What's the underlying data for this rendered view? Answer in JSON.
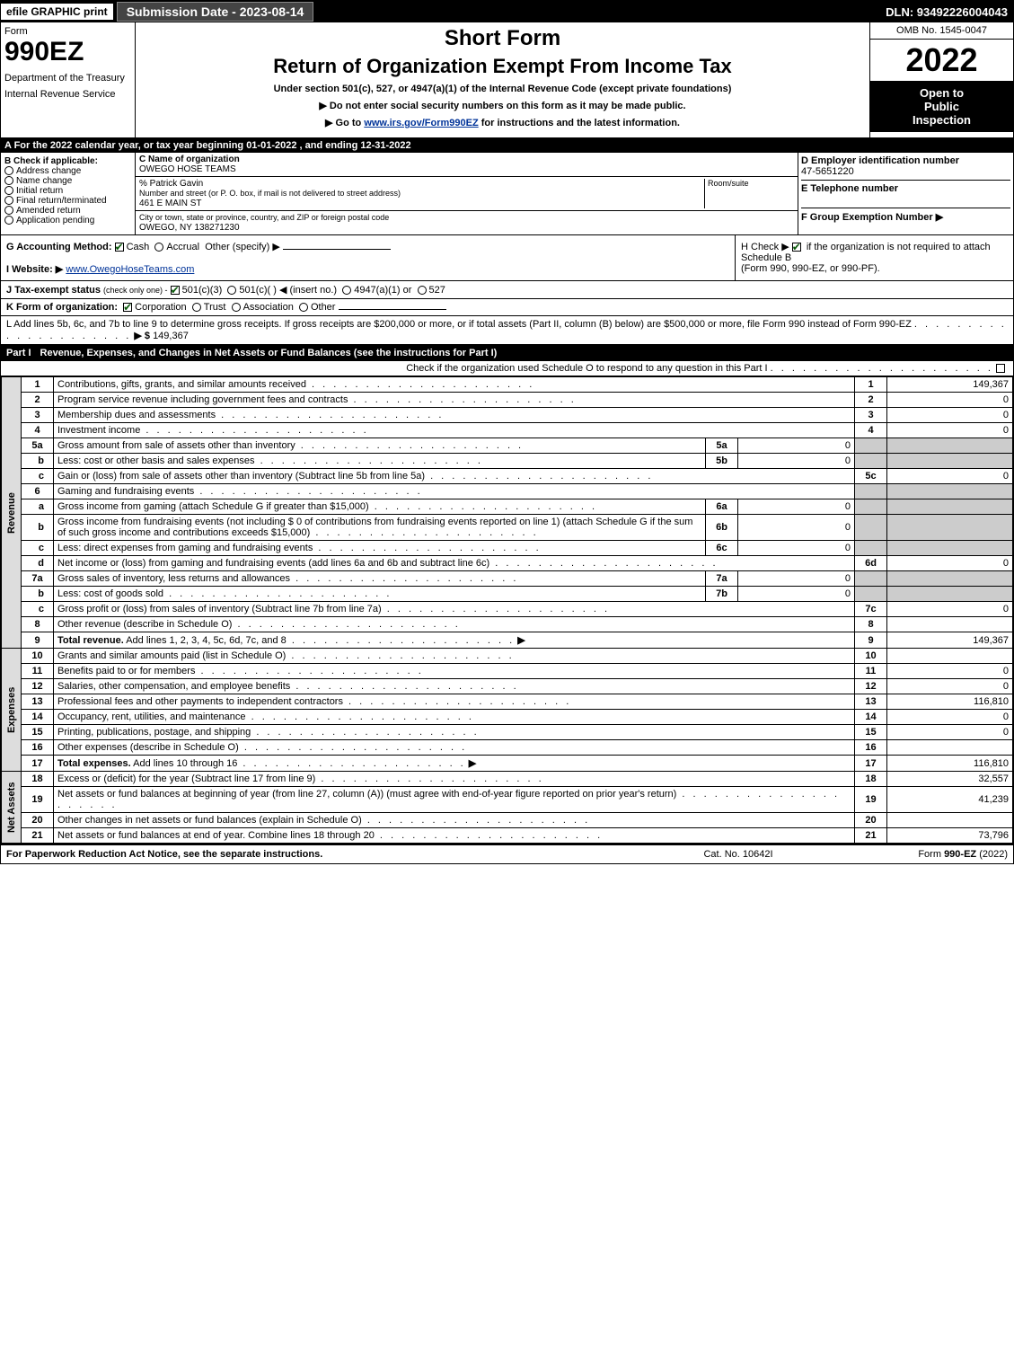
{
  "topbar": {
    "efile": "efile GRAPHIC print",
    "submission": "Submission Date - 2023-08-14",
    "dln": "DLN: 93492226004043"
  },
  "header": {
    "form_label": "Form",
    "form_number": "990EZ",
    "dept1": "Department of the Treasury",
    "dept2": "Internal Revenue Service",
    "title_short": "Short Form",
    "title_return": "Return of Organization Exempt From Income Tax",
    "subtitle1": "Under section 501(c), 527, or 4947(a)(1) of the Internal Revenue Code (except private foundations)",
    "subtitle2": "▶ Do not enter social security numbers on this form as it may be made public.",
    "subtitle3_pre": "▶ Go to ",
    "subtitle3_link": "www.irs.gov/Form990EZ",
    "subtitle3_post": " for instructions and the latest information.",
    "omb": "OMB No. 1545-0047",
    "year": "2022",
    "open1": "Open to",
    "open2": "Public",
    "open3": "Inspection"
  },
  "sec_a": "A  For the 2022 calendar year, or tax year beginning 01-01-2022  , and ending 12-31-2022",
  "col_b": {
    "label": "B  Check if applicable:",
    "items": [
      "Address change",
      "Name change",
      "Initial return",
      "Final return/terminated",
      "Amended return",
      "Application pending"
    ]
  },
  "col_c": {
    "name_label": "C Name of organization",
    "name": "OWEGO HOSE TEAMS",
    "care_of": "% Patrick Gavin",
    "street_label": "Number and street (or P. O. box, if mail is not delivered to street address)",
    "room_label": "Room/suite",
    "street": "461 E MAIN ST",
    "city_label": "City or town, state or province, country, and ZIP or foreign postal code",
    "city": "OWEGO, NY  138271230"
  },
  "col_d": {
    "ein_label": "D Employer identification number",
    "ein": "47-5651220",
    "phone_label": "E Telephone number",
    "phone": "",
    "group_label": "F Group Exemption Number   ▶",
    "group": ""
  },
  "g": {
    "label": "G Accounting Method:",
    "cash": "Cash",
    "accrual": "Accrual",
    "other": "Other (specify) ▶"
  },
  "h": {
    "text1": "H  Check ▶ ",
    "text2": " if the organization is not required to attach Schedule B",
    "text3": "(Form 990, 990-EZ, or 990-PF)."
  },
  "i": {
    "label": "I Website: ▶",
    "value": "www.OwegoHoseTeams.com"
  },
  "j": {
    "label": "J Tax-exempt status",
    "sub": "(check only one) -",
    "opt1": "501(c)(3)",
    "opt2": "501(c)(   ) ◀ (insert no.)",
    "opt3": "4947(a)(1) or",
    "opt4": "527"
  },
  "k": {
    "label": "K Form of organization:",
    "opts": [
      "Corporation",
      "Trust",
      "Association",
      "Other"
    ]
  },
  "l": {
    "text": "L Add lines 5b, 6c, and 7b to line 9 to determine gross receipts. If gross receipts are $200,000 or more, or if total assets (Part II, column (B) below) are $500,000 or more, file Form 990 instead of Form 990-EZ",
    "arrow": "▶ $",
    "value": "149,367"
  },
  "part1": {
    "label": "Part I",
    "title": "Revenue, Expenses, and Changes in Net Assets or Fund Balances (see the instructions for Part I)",
    "check_o": "Check if the organization used Schedule O to respond to any question in this Part I"
  },
  "side_labels": {
    "revenue": "Revenue",
    "expenses": "Expenses",
    "netassets": "Net Assets"
  },
  "lines": [
    {
      "n": "1",
      "d": "Contributions, gifts, grants, and similar amounts received",
      "rn": "1",
      "rv": "149,367"
    },
    {
      "n": "2",
      "d": "Program service revenue including government fees and contracts",
      "rn": "2",
      "rv": "0"
    },
    {
      "n": "3",
      "d": "Membership dues and assessments",
      "rn": "3",
      "rv": "0"
    },
    {
      "n": "4",
      "d": "Investment income",
      "rn": "4",
      "rv": "0"
    },
    {
      "n": "5a",
      "d": "Gross amount from sale of assets other than inventory",
      "mn": "5a",
      "mv": "0",
      "shaded": true
    },
    {
      "n": "b",
      "d": "Less: cost or other basis and sales expenses",
      "mn": "5b",
      "mv": "0",
      "shaded": true
    },
    {
      "n": "c",
      "d": "Gain or (loss) from sale of assets other than inventory (Subtract line 5b from line 5a)",
      "rn": "5c",
      "rv": "0"
    },
    {
      "n": "6",
      "d": "Gaming and fundraising events",
      "shaded": true
    },
    {
      "n": "a",
      "d": "Gross income from gaming (attach Schedule G if greater than $15,000)",
      "mn": "6a",
      "mv": "0",
      "shaded": true
    },
    {
      "n": "b",
      "d": "Gross income from fundraising events (not including $  0              of contributions from fundraising events reported on line 1) (attach Schedule G if the sum of such gross income and contributions exceeds $15,000)",
      "mn": "6b",
      "mv": "0",
      "shaded": true,
      "underline_amt": true
    },
    {
      "n": "c",
      "d": "Less: direct expenses from gaming and fundraising events",
      "mn": "6c",
      "mv": "0",
      "shaded": true
    },
    {
      "n": "d",
      "d": "Net income or (loss) from gaming and fundraising events (add lines 6a and 6b and subtract line 6c)",
      "rn": "6d",
      "rv": "0"
    },
    {
      "n": "7a",
      "d": "Gross sales of inventory, less returns and allowances",
      "mn": "7a",
      "mv": "0",
      "shaded": true
    },
    {
      "n": "b",
      "d": "Less: cost of goods sold",
      "mn": "7b",
      "mv": "0",
      "shaded": true
    },
    {
      "n": "c",
      "d": "Gross profit or (loss) from sales of inventory (Subtract line 7b from line 7a)",
      "rn": "7c",
      "rv": "0"
    },
    {
      "n": "8",
      "d": "Other revenue (describe in Schedule O)",
      "rn": "8",
      "rv": ""
    },
    {
      "n": "9",
      "d": "Total revenue. Add lines 1, 2, 3, 4, 5c, 6d, 7c, and 8",
      "rn": "9",
      "rv": "149,367",
      "bold": true,
      "arrow": true
    }
  ],
  "exp_lines": [
    {
      "n": "10",
      "d": "Grants and similar amounts paid (list in Schedule O)",
      "rn": "10",
      "rv": ""
    },
    {
      "n": "11",
      "d": "Benefits paid to or for members",
      "rn": "11",
      "rv": "0"
    },
    {
      "n": "12",
      "d": "Salaries, other compensation, and employee benefits",
      "rn": "12",
      "rv": "0"
    },
    {
      "n": "13",
      "d": "Professional fees and other payments to independent contractors",
      "rn": "13",
      "rv": "116,810"
    },
    {
      "n": "14",
      "d": "Occupancy, rent, utilities, and maintenance",
      "rn": "14",
      "rv": "0"
    },
    {
      "n": "15",
      "d": "Printing, publications, postage, and shipping",
      "rn": "15",
      "rv": "0"
    },
    {
      "n": "16",
      "d": "Other expenses (describe in Schedule O)",
      "rn": "16",
      "rv": ""
    },
    {
      "n": "17",
      "d": "Total expenses. Add lines 10 through 16",
      "rn": "17",
      "rv": "116,810",
      "bold": true,
      "arrow": true
    }
  ],
  "net_lines": [
    {
      "n": "18",
      "d": "Excess or (deficit) for the year (Subtract line 17 from line 9)",
      "rn": "18",
      "rv": "32,557"
    },
    {
      "n": "19",
      "d": "Net assets or fund balances at beginning of year (from line 27, column (A)) (must agree with end-of-year figure reported on prior year's return)",
      "rn": "19",
      "rv": "41,239"
    },
    {
      "n": "20",
      "d": "Other changes in net assets or fund balances (explain in Schedule O)",
      "rn": "20",
      "rv": ""
    },
    {
      "n": "21",
      "d": "Net assets or fund balances at end of year. Combine lines 18 through 20",
      "rn": "21",
      "rv": "73,796"
    }
  ],
  "footer": {
    "left": "For Paperwork Reduction Act Notice, see the separate instructions.",
    "mid": "Cat. No. 10642I",
    "right_pre": "Form ",
    "right_bold": "990-EZ",
    "right_post": " (2022)"
  }
}
